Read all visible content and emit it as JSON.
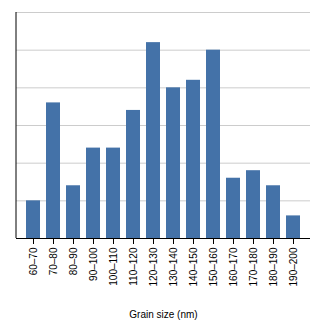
{
  "chart_data": {
    "type": "bar",
    "categories": [
      "60–70",
      "70–80",
      "80–90",
      "90–100",
      "100–110",
      "110–120",
      "120–130",
      "130–140",
      "140–150",
      "150–160",
      "160–170",
      "170–180",
      "180–190",
      "190–200"
    ],
    "values": [
      5,
      18,
      7,
      12,
      12,
      17,
      26,
      20,
      21,
      25,
      8,
      9,
      7,
      3
    ],
    "color": "#4472a8",
    "xlabel": "Grain size (nm)",
    "ylim": [
      0,
      30
    ],
    "yticks": [
      0,
      5,
      10,
      15,
      20,
      25,
      30
    ],
    "grid": true,
    "tick_labels": "x"
  }
}
